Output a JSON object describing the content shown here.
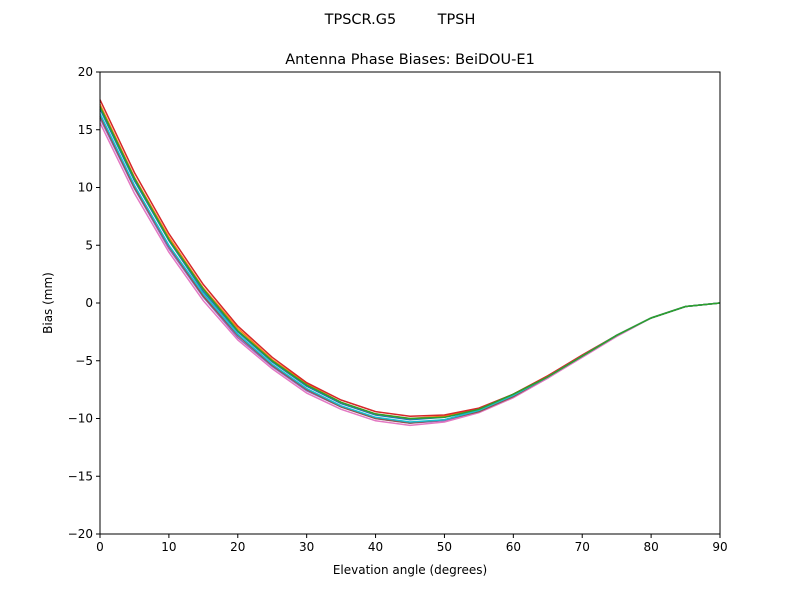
{
  "chart_data": {
    "type": "line",
    "suptitle": "TPSCR.G5         TPSH",
    "title": "Antenna Phase Biases: BeiDOU-E1",
    "xlabel": "Elevation angle (degrees)",
    "ylabel": "Bias (mm)",
    "xlim": [
      0,
      90
    ],
    "ylim": [
      -20,
      20
    ],
    "xticks": [
      0,
      10,
      20,
      30,
      40,
      50,
      60,
      70,
      80,
      90
    ],
    "yticks": [
      -20,
      -15,
      -10,
      -5,
      0,
      5,
      10,
      15,
      20
    ],
    "ytick_labels": [
      "−20",
      "−15",
      "−10",
      "−5",
      "0",
      "5",
      "10",
      "15",
      "20"
    ],
    "grid": false,
    "x": [
      0,
      5,
      10,
      15,
      20,
      25,
      30,
      35,
      40,
      45,
      50,
      55,
      60,
      65,
      70,
      75,
      80,
      85,
      90
    ],
    "series": [
      {
        "color": "#1f77b4",
        "values": [
          16.8,
          10.6,
          5.4,
          1.0,
          -2.5,
          -5.1,
          -7.2,
          -8.7,
          -9.7,
          -10.1,
          -9.9,
          -9.3,
          -8.0,
          -6.4,
          -4.6,
          -2.8,
          -1.3,
          -0.3,
          0.0
        ]
      },
      {
        "color": "#ff7f0e",
        "values": [
          17.2,
          10.9,
          5.7,
          1.3,
          -2.2,
          -4.9,
          -7.0,
          -8.6,
          -9.6,
          -10.0,
          -9.8,
          -9.2,
          -7.9,
          -6.3,
          -4.6,
          -2.8,
          -1.3,
          -0.3,
          0.0
        ]
      },
      {
        "color": "#d62728",
        "values": [
          17.6,
          11.3,
          6.0,
          1.6,
          -2.0,
          -4.7,
          -6.9,
          -8.4,
          -9.4,
          -9.8,
          -9.7,
          -9.1,
          -7.9,
          -6.3,
          -4.5,
          -2.8,
          -1.3,
          -0.3,
          0.0
        ]
      },
      {
        "color": "#9467bd",
        "values": [
          16.0,
          9.9,
          4.7,
          0.5,
          -3.0,
          -5.5,
          -7.6,
          -9.0,
          -10.0,
          -10.4,
          -10.2,
          -9.4,
          -8.1,
          -6.5,
          -4.6,
          -2.8,
          -1.3,
          -0.3,
          0.0
        ]
      },
      {
        "color": "#e377c2",
        "values": [
          15.6,
          9.5,
          4.4,
          0.2,
          -3.2,
          -5.7,
          -7.8,
          -9.2,
          -10.2,
          -10.6,
          -10.3,
          -9.5,
          -8.2,
          -6.5,
          -4.7,
          -2.9,
          -1.3,
          -0.3,
          0.0
        ]
      },
      {
        "color": "#8c564b",
        "values": [
          16.2,
          10.0,
          4.9,
          0.6,
          -2.8,
          -5.4,
          -7.5,
          -9.0,
          -10.0,
          -10.4,
          -10.1,
          -9.4,
          -8.1,
          -6.4,
          -4.6,
          -2.8,
          -1.3,
          -0.3,
          0.0
        ]
      },
      {
        "color": "#17becf",
        "values": [
          16.4,
          10.2,
          5.0,
          0.8,
          -2.7,
          -5.3,
          -7.4,
          -8.9,
          -9.9,
          -10.3,
          -10.1,
          -9.3,
          -8.0,
          -6.4,
          -4.6,
          -2.8,
          -1.3,
          -0.3,
          0.0
        ]
      },
      {
        "color": "#2ca02c",
        "values": [
          17.0,
          10.8,
          5.5,
          1.2,
          -2.4,
          -5.0,
          -7.1,
          -8.6,
          -9.6,
          -10.0,
          -9.9,
          -9.2,
          -7.9,
          -6.4,
          -4.6,
          -2.8,
          -1.3,
          -0.3,
          0.0
        ]
      }
    ]
  }
}
